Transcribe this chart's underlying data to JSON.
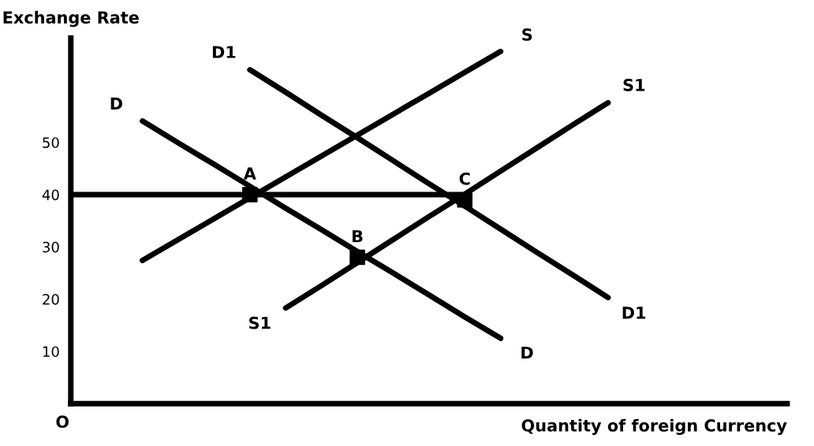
{
  "chart_data": {
    "type": "line",
    "ylabel": "Exchange Rate",
    "xlabel": "Quantity of foreign Currency",
    "categories": [
      null,
      null,
      null,
      null,
      null,
      null,
      null,
      null,
      null,
      null,
      null,
      null,
      null,
      null,
      null,
      null,
      null,
      null,
      null,
      null,
      null
    ],
    "ylim": [
      0,
      70
    ],
    "yticks": [
      10,
      20,
      30,
      40,
      50
    ],
    "tick_labels": "y",
    "marker": "none",
    "line_style": "solid",
    "series": [
      {
        "color": "#000000",
        "values": [
          null,
          null,
          27.4,
          31.4,
          35.4,
          39.4,
          43.4,
          47.4,
          51.4,
          55.4,
          59.4,
          63.4,
          67.4,
          null,
          null,
          null,
          null,
          null,
          null,
          null,
          null
        ],
        "value_labels": [
          null,
          null,
          null,
          null,
          null,
          null,
          null,
          null,
          null,
          null,
          null,
          null,
          "S",
          null,
          null,
          null,
          null,
          null,
          null,
          null,
          null
        ]
      },
      {
        "color": "#000000",
        "values": [
          null,
          null,
          54.1,
          49.9,
          45.8,
          41.6,
          37.4,
          33.3,
          29.1,
          25.0,
          20.8,
          16.6,
          12.5,
          null,
          null,
          null,
          null,
          null,
          null,
          null,
          null
        ],
        "value_labels": [
          null,
          null,
          "D",
          null,
          null,
          null,
          null,
          null,
          null,
          null,
          null,
          null,
          "D",
          null,
          null,
          null,
          null,
          null,
          null,
          null,
          null
        ]
      },
      {
        "color": "#000000",
        "values": [
          null,
          null,
          null,
          null,
          null,
          63.9,
          59.6,
          55.2,
          50.9,
          46.5,
          42.1,
          37.8,
          33.4,
          29.0,
          24.7,
          20.3,
          null,
          null,
          null,
          null,
          null
        ],
        "value_labels": [
          null,
          null,
          null,
          null,
          null,
          "D1",
          null,
          null,
          null,
          null,
          null,
          null,
          null,
          null,
          null,
          "D1",
          null,
          null,
          null,
          null,
          null
        ]
      },
      {
        "color": "#000000",
        "values": [
          null,
          null,
          null,
          null,
          null,
          null,
          18.3,
          22.6,
          27.0,
          31.4,
          35.8,
          40.1,
          44.5,
          48.9,
          53.3,
          57.6,
          null,
          null,
          null,
          null,
          null
        ],
        "value_labels": [
          null,
          null,
          null,
          null,
          null,
          null,
          "S1",
          null,
          null,
          null,
          null,
          null,
          null,
          null,
          null,
          "S1",
          null,
          null,
          null,
          null,
          null
        ]
      },
      {
        "color": "#000000",
        "values": [
          40,
          40,
          40,
          40,
          40,
          40,
          40,
          40,
          40,
          40,
          40,
          40,
          null,
          null,
          null,
          null,
          null,
          null,
          null,
          null,
          null
        ]
      },
      {
        "type": "scatter",
        "marker": "square",
        "color": "#000000",
        "values": [
          null,
          null,
          null,
          null,
          null,
          40,
          null,
          null,
          28,
          null,
          null,
          39,
          null,
          null,
          null,
          null,
          null,
          null,
          null,
          null,
          null
        ],
        "value_labels": [
          null,
          null,
          null,
          null,
          null,
          "A",
          null,
          null,
          "B",
          null,
          null,
          "C",
          null,
          null,
          null,
          null,
          null,
          null,
          null,
          null,
          null
        ]
      }
    ],
    "annotations": [
      "O"
    ]
  }
}
